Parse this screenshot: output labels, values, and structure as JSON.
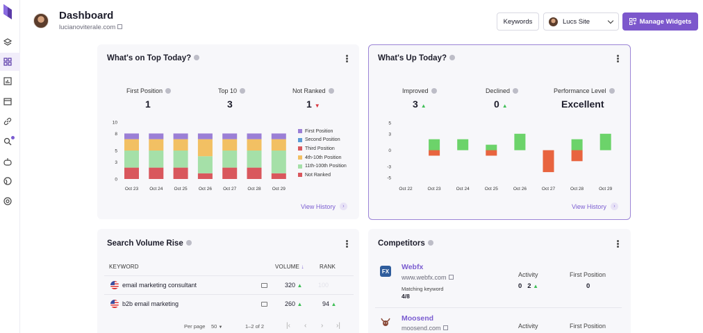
{
  "header": {
    "title": "Dashboard",
    "domain": "lucianoviterale.com",
    "keywords_button": "Keywords",
    "site_select": "Lucs Site",
    "manage_button": "Manage Widgets"
  },
  "sidebar": {
    "items": [
      "layers-icon",
      "dashboard-icon",
      "bar-chart-icon",
      "calendar-icon",
      "link-icon",
      "search-icon",
      "bot-icon",
      "globe-icon",
      "target-icon"
    ]
  },
  "top_today": {
    "title": "What's on Top Today?",
    "stats": [
      {
        "label": "First Position",
        "value": "1"
      },
      {
        "label": "Top 10",
        "value": "3"
      },
      {
        "label": "Not Ranked",
        "value": "1"
      }
    ],
    "view_history": "View History",
    "legend": [
      "First Position",
      "Second Position",
      "Third Position",
      "4th-10th Position",
      "11th-100th Position",
      "Not Ranked"
    ]
  },
  "up_today": {
    "title": "What's Up Today?",
    "stats": [
      {
        "label": "Improved",
        "value": "3"
      },
      {
        "label": "Declined",
        "value": "0"
      },
      {
        "label": "Performance Level",
        "value": "Excellent"
      }
    ],
    "view_history": "View History"
  },
  "search_volume": {
    "title": "Search Volume Rise",
    "headers": {
      "keyword": "KEYWORD",
      "volume": "VOLUME",
      "rank": "RANK"
    },
    "rows": [
      {
        "keyword": "email marketing consultant",
        "volume": "320",
        "rank": "100"
      },
      {
        "keyword": "b2b email marketing",
        "volume": "260",
        "rank": "94"
      }
    ],
    "pager": {
      "per_page_label": "Per page",
      "per_page": "50",
      "range": "1–2 of 2"
    }
  },
  "competitors": {
    "title": "Competitors",
    "activity_label": "Activity",
    "first_position_label": "First Position",
    "items": [
      {
        "logo": "FX",
        "name": "Webfx",
        "url": "www.webfx.com",
        "matching_label": "Matching keyword",
        "matching": "4/8",
        "activity_a": "0",
        "activity_b": "2",
        "first_position": "0"
      },
      {
        "name": "Moosend",
        "url": "moosend.com"
      }
    ]
  },
  "colors": {
    "accent": "#7c57cc",
    "first": "#9b7fd6",
    "second": "#5b9bd5",
    "third": "#d9575d",
    "top10": "#f2c063",
    "top100": "#a5e0a8",
    "not_ranked": "#d9575d",
    "gain": "#6cd36a",
    "loss": "#e8643f"
  },
  "chart_data": [
    {
      "type": "bar",
      "stacked": true,
      "categories": [
        "Oct 23",
        "Oct 24",
        "Oct 25",
        "Oct 26",
        "Oct 27",
        "Oct 28",
        "Oct 29"
      ],
      "yticks": [
        0,
        3,
        5,
        8,
        10
      ],
      "ylim": [
        0,
        10
      ],
      "series": [
        {
          "name": "Not Ranked",
          "values": [
            2,
            2,
            2,
            1,
            2,
            2,
            1
          ]
        },
        {
          "name": "11th-100th Position",
          "values": [
            3,
            3,
            3,
            3,
            3,
            3,
            4
          ]
        },
        {
          "name": "4th-10th Position",
          "values": [
            2,
            2,
            2,
            3,
            2,
            2,
            2
          ]
        },
        {
          "name": "Third Position",
          "values": [
            0,
            0,
            0,
            0,
            0,
            0,
            0
          ]
        },
        {
          "name": "Second Position",
          "values": [
            0,
            0,
            0,
            0,
            0,
            0,
            0
          ]
        },
        {
          "name": "First Position",
          "values": [
            1,
            1,
            1,
            1,
            1,
            1,
            1
          ]
        }
      ]
    },
    {
      "type": "bar",
      "categories": [
        "Oct 22",
        "Oct 23",
        "Oct 24",
        "Oct 25",
        "Oct 26",
        "Oct 27",
        "Oct 28",
        "Oct 29"
      ],
      "yticks": [
        5,
        3,
        0,
        -3,
        -5
      ],
      "ylim": [
        -5,
        5
      ],
      "series": [
        {
          "name": "gain",
          "values": [
            0,
            2,
            2,
            1,
            3,
            0,
            2,
            3
          ]
        },
        {
          "name": "loss",
          "values": [
            0,
            -1,
            0,
            -1,
            0,
            -4,
            -2,
            0
          ]
        }
      ]
    }
  ]
}
